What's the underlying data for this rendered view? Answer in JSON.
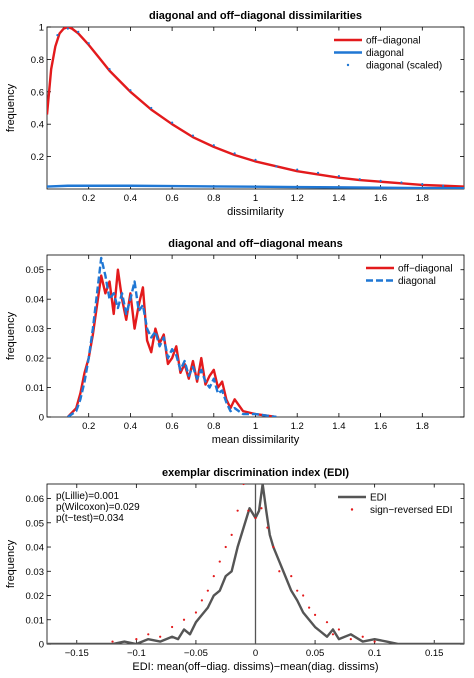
{
  "chart_data": [
    {
      "type": "line",
      "title": "diagonal and off−diagonal dissimilarities",
      "xlabel": "dissimilarity",
      "ylabel": "frequency",
      "xlim": [
        0,
        2
      ],
      "ylim": [
        0,
        1
      ],
      "xticks": [
        0.2,
        0.4,
        0.6,
        0.8,
        1,
        1.2,
        1.4,
        1.6,
        1.8
      ],
      "xtick_labels": [
        "0.2",
        "0.4",
        "0.6",
        "0.8",
        "1",
        "1.2",
        "1.4",
        "1.6",
        "1.8"
      ],
      "yticks": [
        0.2,
        0.4,
        0.6,
        0.8,
        1
      ],
      "ytick_labels": [
        "0.2",
        "0.4",
        "0.6",
        "0.8",
        "1"
      ],
      "legend_position": "top-right",
      "series": [
        {
          "name": "off−diagonal",
          "style": "solid",
          "color": "#e31a1c",
          "x": [
            0,
            0.02,
            0.04,
            0.06,
            0.08,
            0.1,
            0.12,
            0.15,
            0.2,
            0.25,
            0.3,
            0.4,
            0.5,
            0.6,
            0.7,
            0.8,
            0.9,
            1.0,
            1.1,
            1.2,
            1.3,
            1.4,
            1.5,
            1.6,
            1.7,
            1.8,
            1.9,
            2.0
          ],
          "y": [
            0.46,
            0.74,
            0.88,
            0.96,
            0.99,
            1.0,
            0.99,
            0.96,
            0.89,
            0.81,
            0.73,
            0.6,
            0.49,
            0.4,
            0.32,
            0.26,
            0.21,
            0.17,
            0.14,
            0.11,
            0.09,
            0.07,
            0.055,
            0.045,
            0.035,
            0.025,
            0.02,
            0.015
          ]
        },
        {
          "name": "diagonal",
          "style": "solid",
          "color": "#1f77d4",
          "x": [
            0,
            0.1,
            0.2,
            0.4,
            0.6,
            0.8,
            1.0,
            1.2,
            1.4,
            1.6,
            1.8,
            2.0
          ],
          "y": [
            0.015,
            0.02,
            0.02,
            0.02,
            0.018,
            0.016,
            0.014,
            0.012,
            0.01,
            0.008,
            0.006,
            0.005
          ]
        },
        {
          "name": "diagonal (scaled)",
          "style": "dots",
          "color": "#1f77d4",
          "x": [
            0.05,
            0.1,
            0.15,
            0.2,
            0.3,
            0.4,
            0.5,
            0.6,
            0.7,
            0.8,
            0.9,
            1.0,
            1.1,
            1.2,
            1.3,
            1.4,
            1.5,
            1.6,
            1.7,
            1.8,
            1.9
          ],
          "y": [
            0.95,
            0.99,
            0.97,
            0.9,
            0.74,
            0.61,
            0.5,
            0.41,
            0.33,
            0.27,
            0.22,
            0.18,
            0.14,
            0.12,
            0.1,
            0.08,
            0.06,
            0.05,
            0.04,
            0.03,
            0.02
          ]
        }
      ]
    },
    {
      "type": "line",
      "title": "diagonal and off−diagonal means",
      "xlabel": "mean dissimilarity",
      "ylabel": "frequency",
      "xlim": [
        0,
        2
      ],
      "ylim": [
        0,
        0.055
      ],
      "xticks": [
        0.2,
        0.4,
        0.6,
        0.8,
        1,
        1.2,
        1.4,
        1.6,
        1.8
      ],
      "xtick_labels": [
        "0.2",
        "0.4",
        "0.6",
        "0.8",
        "1",
        "1.2",
        "1.4",
        "1.6",
        "1.8"
      ],
      "yticks": [
        0,
        0.01,
        0.02,
        0.03,
        0.04,
        0.05
      ],
      "ytick_labels": [
        "0",
        "0.01",
        "0.02",
        "0.03",
        "0.04",
        "0.05"
      ],
      "legend_position": "top-right",
      "series": [
        {
          "name": "off−diagonal",
          "style": "solid",
          "color": "#e31a1c",
          "x": [
            0.1,
            0.14,
            0.16,
            0.18,
            0.2,
            0.22,
            0.24,
            0.26,
            0.28,
            0.3,
            0.32,
            0.34,
            0.36,
            0.38,
            0.4,
            0.42,
            0.44,
            0.46,
            0.48,
            0.5,
            0.52,
            0.54,
            0.56,
            0.58,
            0.6,
            0.62,
            0.64,
            0.66,
            0.68,
            0.7,
            0.72,
            0.74,
            0.76,
            0.78,
            0.8,
            0.82,
            0.84,
            0.86,
            0.88,
            0.9,
            0.94,
            1.0,
            1.1
          ],
          "y": [
            0,
            0.003,
            0.008,
            0.015,
            0.02,
            0.028,
            0.038,
            0.048,
            0.042,
            0.046,
            0.035,
            0.05,
            0.04,
            0.033,
            0.042,
            0.03,
            0.038,
            0.044,
            0.026,
            0.022,
            0.03,
            0.025,
            0.028,
            0.018,
            0.02,
            0.024,
            0.015,
            0.018,
            0.013,
            0.019,
            0.012,
            0.02,
            0.011,
            0.014,
            0.016,
            0.01,
            0.012,
            0.006,
            0.003,
            0.006,
            0.002,
            0.001,
            0
          ]
        },
        {
          "name": "diagonal",
          "style": "dashed",
          "color": "#1f77d4",
          "x": [
            0.1,
            0.14,
            0.16,
            0.18,
            0.2,
            0.22,
            0.24,
            0.26,
            0.28,
            0.3,
            0.32,
            0.34,
            0.36,
            0.38,
            0.4,
            0.42,
            0.44,
            0.46,
            0.48,
            0.5,
            0.52,
            0.54,
            0.56,
            0.58,
            0.6,
            0.62,
            0.64,
            0.66,
            0.68,
            0.7,
            0.72,
            0.74,
            0.76,
            0.78,
            0.8,
            0.82,
            0.84,
            0.86,
            0.88,
            0.9,
            0.94,
            1.0,
            1.1
          ],
          "y": [
            0,
            0.002,
            0.006,
            0.012,
            0.02,
            0.03,
            0.042,
            0.054,
            0.048,
            0.04,
            0.042,
            0.037,
            0.042,
            0.035,
            0.04,
            0.046,
            0.036,
            0.038,
            0.03,
            0.027,
            0.029,
            0.024,
            0.027,
            0.02,
            0.023,
            0.021,
            0.016,
            0.019,
            0.014,
            0.017,
            0.013,
            0.016,
            0.012,
            0.01,
            0.013,
            0.008,
            0.009,
            0.005,
            0.002,
            0.003,
            0.001,
            0.001,
            0
          ]
        }
      ]
    },
    {
      "type": "line",
      "title": "exemplar discrimination index (EDI)",
      "xlabel": "EDI: mean(off−diag. dissims)−mean(diag. dissims)",
      "ylabel": "frequency",
      "xlim": [
        -0.175,
        0.175
      ],
      "ylim": [
        0,
        0.066
      ],
      "xticks": [
        -0.15,
        -0.1,
        -0.05,
        0,
        0.05,
        0.1,
        0.15
      ],
      "xtick_labels": [
        "−0.15",
        "−0.1",
        "−0.05",
        "0",
        "0.05",
        "0.1",
        "0.15"
      ],
      "yticks": [
        0,
        0.01,
        0.02,
        0.03,
        0.04,
        0.05,
        0.06
      ],
      "ytick_labels": [
        "0",
        "0.01",
        "0.02",
        "0.03",
        "0.04",
        "0.05",
        "0.06"
      ],
      "legend_position": "top-right",
      "annotations": [
        "p(Lillie)=0.001",
        "p(Wilcoxon)=0.029",
        "p(t−test)=0.034"
      ],
      "vline_x": 0,
      "series": [
        {
          "name": "EDI",
          "style": "solid",
          "color": "#555555",
          "x": [
            -0.175,
            -0.12,
            -0.11,
            -0.1,
            -0.09,
            -0.08,
            -0.07,
            -0.065,
            -0.06,
            -0.055,
            -0.05,
            -0.045,
            -0.04,
            -0.035,
            -0.03,
            -0.025,
            -0.02,
            -0.015,
            -0.01,
            -0.005,
            0,
            0.003,
            0.006,
            0.009,
            0.012,
            0.015,
            0.02,
            0.025,
            0.03,
            0.035,
            0.04,
            0.045,
            0.05,
            0.055,
            0.06,
            0.065,
            0.07,
            0.08,
            0.09,
            0.1,
            0.11,
            0.12,
            0.175
          ],
          "y": [
            0,
            0,
            0.001,
            0,
            0.002,
            0.001,
            0.003,
            0.002,
            0.006,
            0.004,
            0.009,
            0.012,
            0.015,
            0.02,
            0.022,
            0.028,
            0.03,
            0.04,
            0.048,
            0.056,
            0.052,
            0.055,
            0.066,
            0.055,
            0.045,
            0.04,
            0.034,
            0.028,
            0.022,
            0.018,
            0.013,
            0.01,
            0.007,
            0.005,
            0.003,
            0.006,
            0.002,
            0.004,
            0.001,
            0.002,
            0.001,
            0,
            0
          ]
        },
        {
          "name": "sign−reversed EDI",
          "style": "dots",
          "color": "#e31a1c",
          "x": [
            -0.12,
            -0.1,
            -0.09,
            -0.08,
            -0.07,
            -0.06,
            -0.05,
            -0.045,
            -0.04,
            -0.035,
            -0.03,
            -0.025,
            -0.02,
            -0.015,
            -0.01,
            -0.006,
            0,
            0.005,
            0.01,
            0.015,
            0.02,
            0.03,
            0.035,
            0.04,
            0.045,
            0.05,
            0.06,
            0.065,
            0.07,
            0.08,
            0.09,
            0.1
          ],
          "y": [
            0.001,
            0.002,
            0.004,
            0.003,
            0.007,
            0.01,
            0.013,
            0.018,
            0.022,
            0.028,
            0.034,
            0.04,
            0.045,
            0.055,
            0.066,
            0.055,
            0.052,
            0.056,
            0.048,
            0.04,
            0.03,
            0.028,
            0.022,
            0.02,
            0.015,
            0.012,
            0.009,
            0.004,
            0.006,
            0.002,
            0.003,
            0.001
          ]
        }
      ]
    }
  ]
}
